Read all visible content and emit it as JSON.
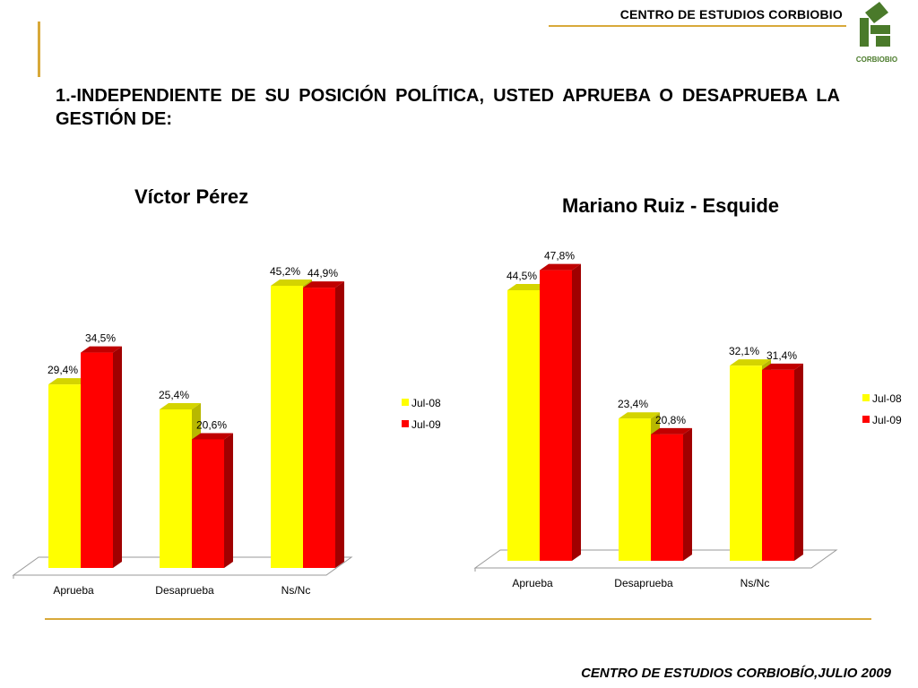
{
  "header": {
    "org": "CENTRO DE ESTUDIOS CORBIOBIO"
  },
  "logo": {
    "text": "CORBIOBIO",
    "color": "#4a7a2a"
  },
  "question": "1.-INDEPENDIENTE DE SU POSICIÓN POLÍTICA, USTED APRUEBA O DESAPRUEBA LA GESTIÓN DE:",
  "footer": "CENTRO DE ESTUDIOS CORBIOBÍO,JULIO 2009",
  "colors": {
    "accent_line": "#d8a93a",
    "jul08": "#ffff00",
    "jul09": "#ff0000"
  },
  "chart_data": [
    {
      "type": "bar",
      "title": "Víctor Pérez",
      "categories": [
        "Aprueba",
        "Desaprueba",
        "Ns/Nc"
      ],
      "series": [
        {
          "name": "Jul-08",
          "values": [
            29.4,
            25.4,
            45.2
          ],
          "labels": [
            "29,4%",
            "25,4%",
            "45,2%"
          ]
        },
        {
          "name": "Jul-09",
          "values": [
            34.5,
            20.6,
            44.9
          ],
          "labels": [
            "34,5%",
            "20,6%",
            "44,9%"
          ]
        }
      ],
      "ylim": [
        0,
        50
      ],
      "legend": "right",
      "grid": false
    },
    {
      "type": "bar",
      "title": "Mariano Ruiz - Esquide",
      "categories": [
        "Aprueba",
        "Desaprueba",
        "Ns/Nc"
      ],
      "series": [
        {
          "name": "Jul-08",
          "values": [
            44.5,
            23.4,
            32.1
          ],
          "labels": [
            "44,5%",
            "23,4%",
            "32,1%"
          ]
        },
        {
          "name": "Jul-09",
          "values": [
            47.8,
            20.8,
            31.4
          ],
          "labels": [
            "47,8%",
            "20,8%",
            "31,4%"
          ]
        }
      ],
      "ylim": [
        0,
        50
      ],
      "legend": "right",
      "grid": false
    }
  ]
}
